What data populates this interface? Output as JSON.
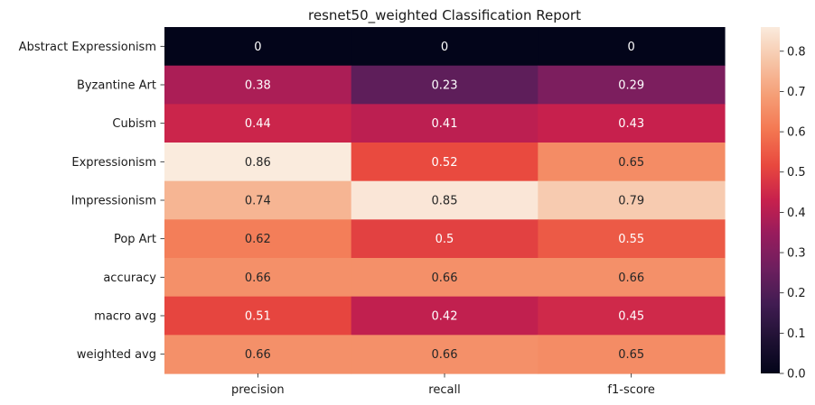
{
  "chart_data": {
    "type": "heatmap",
    "title": "resnet50_weighted Classification Report",
    "xlabel": "",
    "ylabel": "",
    "columns": [
      "precision",
      "recall",
      "f1-score"
    ],
    "rows": [
      "Abstract Expressionism",
      "Byzantine Art",
      "Cubism",
      "Expressionism",
      "Impressionism",
      "Pop Art",
      "accuracy",
      "macro avg",
      "weighted avg"
    ],
    "values": [
      [
        0,
        0,
        0
      ],
      [
        0.38,
        0.23,
        0.29
      ],
      [
        0.44,
        0.41,
        0.43
      ],
      [
        0.86,
        0.52,
        0.65
      ],
      [
        0.74,
        0.85,
        0.79
      ],
      [
        0.62,
        0.5,
        0.55
      ],
      [
        0.66,
        0.66,
        0.66
      ],
      [
        0.51,
        0.42,
        0.45
      ],
      [
        0.66,
        0.66,
        0.65
      ]
    ],
    "cell_labels": [
      [
        "0",
        "0",
        "0"
      ],
      [
        "0.38",
        "0.23",
        "0.29"
      ],
      [
        "0.44",
        "0.41",
        "0.43"
      ],
      [
        "0.86",
        "0.52",
        "0.65"
      ],
      [
        "0.74",
        "0.85",
        "0.79"
      ],
      [
        "0.62",
        "0.5",
        "0.55"
      ],
      [
        "0.66",
        "0.66",
        "0.66"
      ],
      [
        "0.51",
        "0.42",
        "0.45"
      ],
      [
        "0.66",
        "0.66",
        "0.65"
      ]
    ],
    "colormap": "rocket",
    "vmin": 0,
    "vmax": 0.86,
    "colorbar_ticks": [
      0.0,
      0.1,
      0.2,
      0.3,
      0.4,
      0.5,
      0.6,
      0.7,
      0.8
    ],
    "colorbar_tick_labels": [
      "0.0",
      "0.1",
      "0.2",
      "0.3",
      "0.4",
      "0.5",
      "0.6",
      "0.7",
      "0.8"
    ],
    "grid": false,
    "legend": "colorbar-right"
  }
}
